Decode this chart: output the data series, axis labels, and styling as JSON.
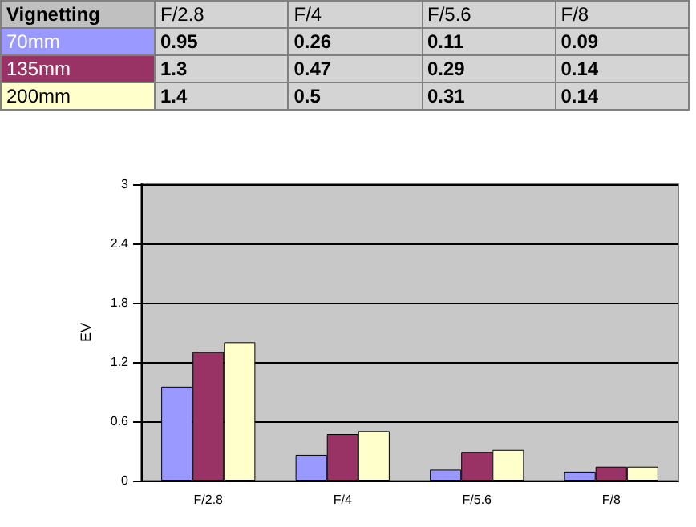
{
  "chart_data": {
    "type": "bar",
    "legend_title": "Vignetting",
    "ylabel": "EV",
    "categories": [
      "F/2.8",
      "F/4",
      "F/5.6",
      "F/8"
    ],
    "series": [
      {
        "name": "70mm",
        "color": "#9999ff",
        "values": [
          0.95,
          0.26,
          0.11,
          0.09
        ]
      },
      {
        "name": "135mm",
        "color": "#993366",
        "values": [
          1.3,
          0.47,
          0.29,
          0.14
        ]
      },
      {
        "name": "200mm",
        "color": "#ffffcc",
        "values": [
          1.4,
          0.5,
          0.31,
          0.14
        ]
      }
    ],
    "ylim": [
      0,
      3
    ],
    "yticks": [
      0,
      0.6,
      1.2,
      1.8,
      2.4,
      3
    ],
    "grid": "y",
    "legend": "top",
    "data_labels": true
  }
}
